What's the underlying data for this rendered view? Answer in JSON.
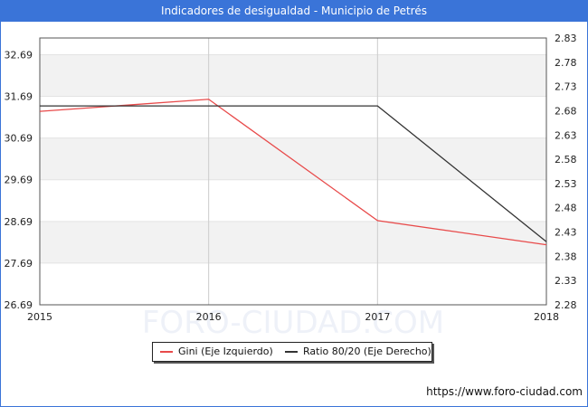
{
  "page": {
    "title": "Indicadores de desigualdad - Municipio de Petrés",
    "footer_url": "https://www.foro-ciudad.com",
    "watermark": "FORO-CIUDAD.COM"
  },
  "colors": {
    "header": "#3a74d8",
    "gini": "#e84a4a",
    "ratio": "#333333",
    "band": "#f2f2f2",
    "grid": "#cccccc"
  },
  "chart_data": {
    "type": "line",
    "title": "Indicadores de desigualdad - Municipio de Petrés",
    "x": [
      "2015",
      "2016",
      "2017",
      "2018"
    ],
    "series": [
      {
        "name": "Gini (Eje Izquierdo)",
        "axis": "left",
        "values": [
          31.33,
          31.62,
          28.71,
          28.13
        ]
      },
      {
        "name": "Ratio 80/20 (Eje Derecho)",
        "axis": "right",
        "values": [
          2.69,
          2.69,
          2.69,
          2.41
        ]
      }
    ],
    "y_left": {
      "range": [
        26.69,
        33.09
      ],
      "ticks": [
        "32.69",
        "31.69",
        "30.69",
        "29.69",
        "28.69",
        "27.69",
        "26.69"
      ]
    },
    "y_right": {
      "range": [
        2.28,
        2.83
      ],
      "ticks": [
        "2.83",
        "2.78",
        "2.73",
        "2.68",
        "2.63",
        "2.58",
        "2.53",
        "2.48",
        "2.43",
        "2.38",
        "2.33",
        "2.28"
      ]
    },
    "grid": true,
    "legend_position": "bottom"
  }
}
